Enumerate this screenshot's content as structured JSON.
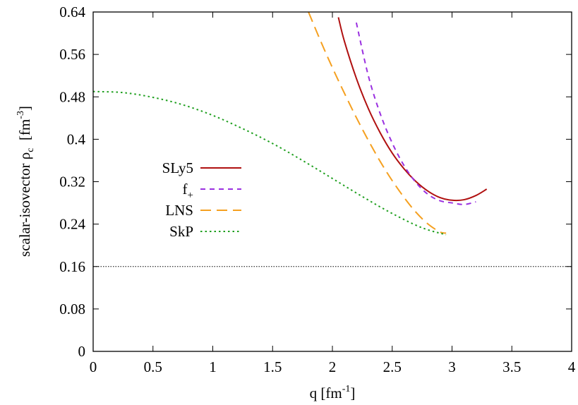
{
  "chart_data": {
    "type": "line",
    "xlabel": {
      "base": "q [fm",
      "sup": "-1",
      "tail": "]"
    },
    "ylabel": {
      "base": "scalar-isovector ρ",
      "sub": "c",
      "mid": "  [fm",
      "sup": "-3",
      "tail": "]"
    },
    "xlim": [
      0,
      4
    ],
    "ylim": [
      0,
      0.64
    ],
    "x_ticks": [
      "0",
      "0.5",
      "1",
      "1.5",
      "2",
      "2.5",
      "3",
      "3.5",
      "4"
    ],
    "x_tick_values": [
      0,
      0.5,
      1,
      1.5,
      2,
      2.5,
      3,
      3.5,
      4
    ],
    "y_ticks": [
      "0",
      "0.08",
      "0.16",
      "0.24",
      "0.32",
      "0.4",
      "0.48",
      "0.56",
      "0.64"
    ],
    "y_tick_values": [
      0,
      0.08,
      0.16,
      0.24,
      0.32,
      0.4,
      0.48,
      0.56,
      0.64
    ],
    "grid": false,
    "legend_position": "left",
    "reference_line": {
      "y": 0.16,
      "style": "dotted",
      "color": "#000000"
    },
    "series": [
      {
        "name": "SLy5",
        "name_sub": "",
        "color": "#b01010",
        "dash": "solid",
        "x": [
          2.05,
          2.1,
          2.2,
          2.3,
          2.4,
          2.5,
          2.6,
          2.7,
          2.8,
          2.9,
          3.0,
          3.1,
          3.2,
          3.29
        ],
        "y": [
          0.63,
          0.585,
          0.515,
          0.458,
          0.412,
          0.374,
          0.344,
          0.32,
          0.302,
          0.29,
          0.285,
          0.286,
          0.294,
          0.306
        ]
      },
      {
        "name": "f",
        "name_sub": "+",
        "color": "#9a30e0",
        "dash": "short",
        "x": [
          2.2,
          2.3,
          2.4,
          2.5,
          2.6,
          2.7,
          2.8,
          2.9,
          3.0,
          3.1,
          3.2
        ],
        "y": [
          0.62,
          0.52,
          0.448,
          0.393,
          0.35,
          0.318,
          0.296,
          0.284,
          0.28,
          0.277,
          0.282
        ]
      },
      {
        "name": "LNS",
        "name_sub": "",
        "color": "#f5a020",
        "dash": "long",
        "x": [
          1.8,
          1.9,
          2.0,
          2.1,
          2.2,
          2.3,
          2.4,
          2.5,
          2.6,
          2.7,
          2.8,
          2.9,
          2.95
        ],
        "y": [
          0.64,
          0.586,
          0.535,
          0.487,
          0.441,
          0.398,
          0.358,
          0.322,
          0.29,
          0.262,
          0.24,
          0.225,
          0.223
        ]
      },
      {
        "name": "SkP",
        "name_sub": "",
        "color": "#20a020",
        "dash": "dotted",
        "x": [
          0,
          0.25,
          0.5,
          0.75,
          1.0,
          1.25,
          1.5,
          1.75,
          2.0,
          2.25,
          2.5,
          2.75,
          2.95
        ],
        "y": [
          0.49,
          0.488,
          0.479,
          0.465,
          0.445,
          0.42,
          0.392,
          0.36,
          0.326,
          0.292,
          0.26,
          0.233,
          0.22
        ]
      }
    ]
  }
}
